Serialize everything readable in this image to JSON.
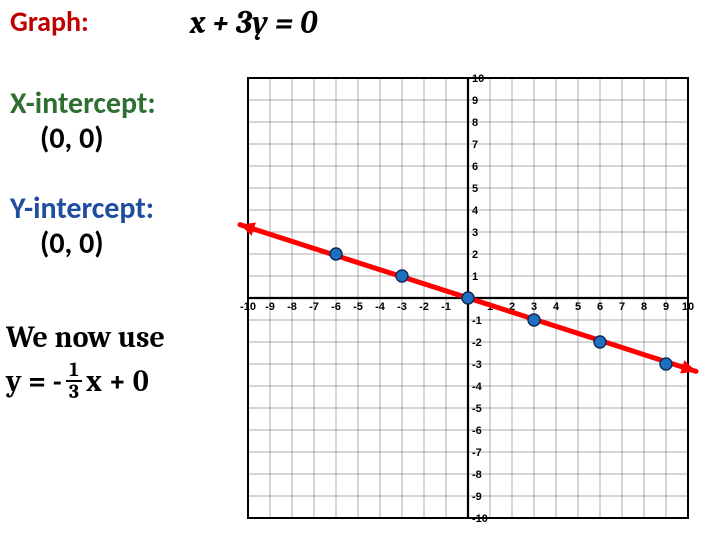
{
  "title": "Graph:",
  "equation": "x + 3y = 0",
  "x_intercept": {
    "label": "X-intercept:",
    "value": "(0, 0)",
    "label_color": "#2f7030"
  },
  "y_intercept": {
    "label": "Y-intercept:",
    "value": "(0, 0)",
    "label_color": "#1f4da0"
  },
  "note": "We now use",
  "slope_eq": {
    "lhs": "y = -",
    "num": "1",
    "den": "3",
    "rhs": "x + 0"
  },
  "chart": {
    "type": "line",
    "xlim": [
      -10,
      10
    ],
    "ylim": [
      -10,
      10
    ],
    "xtick_step": 1,
    "ytick_step": 1,
    "background_color": "#ffffff",
    "grid_color": "#333333",
    "grid_stroke": 0.4,
    "frame_stroke": 2,
    "axis_color": "#000000",
    "axis_stroke": 2.2,
    "tick_label_fontsize": 11,
    "tick_label_weight": "bold",
    "line": {
      "color": "#ff0000",
      "stroke": 5,
      "x1": -10,
      "y1": 3.333,
      "x2": 10,
      "y2": -3.333,
      "arrowheads": true
    },
    "points": {
      "fill": "#1f6fc0",
      "stroke": "#0a2a55",
      "stroke_width": 1.4,
      "radius": 6,
      "data": [
        {
          "x": -6,
          "y": 2
        },
        {
          "x": -3,
          "y": 1
        },
        {
          "x": 0,
          "y": 0
        },
        {
          "x": 3,
          "y": -1
        },
        {
          "x": 6,
          "y": -2
        },
        {
          "x": 9,
          "y": -3
        }
      ]
    }
  }
}
